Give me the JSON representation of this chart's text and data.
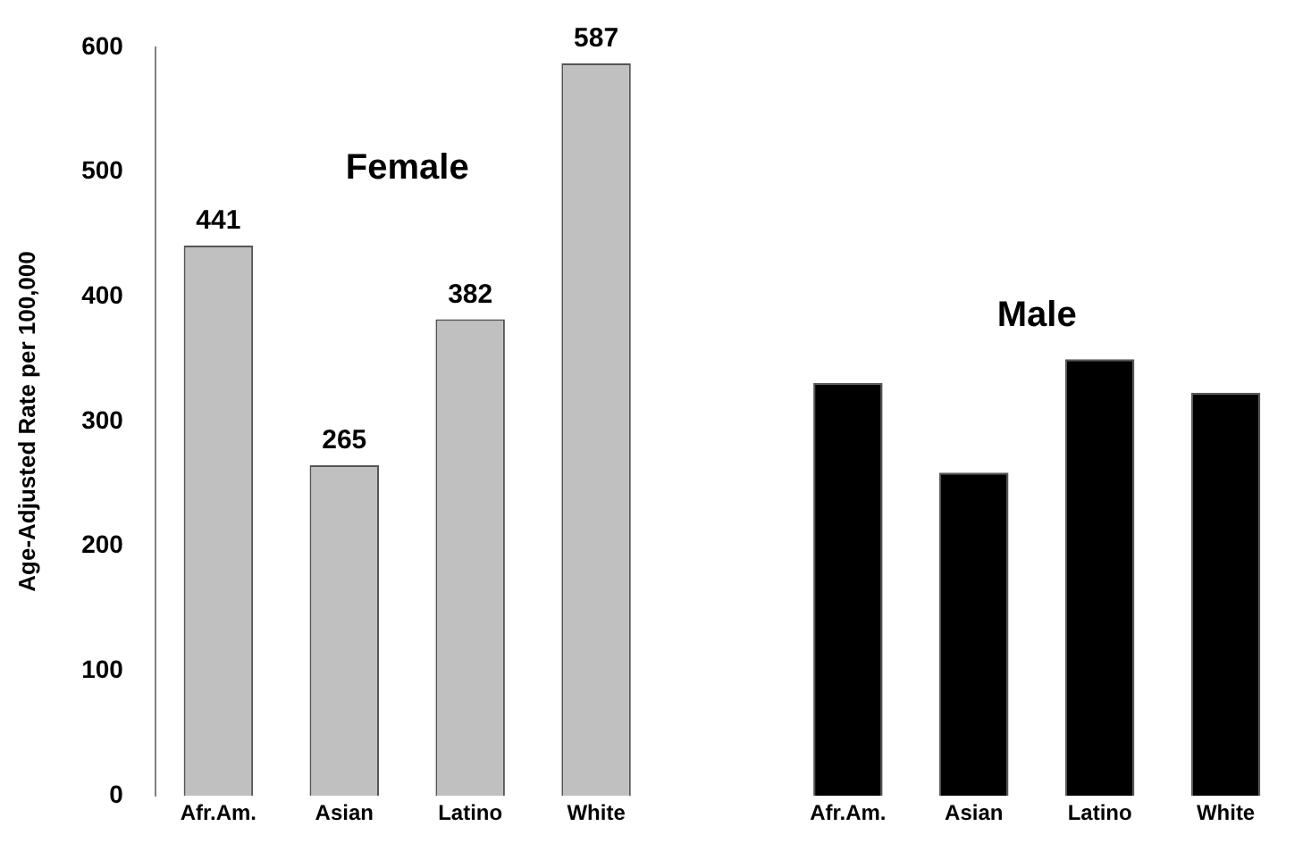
{
  "chart_data": {
    "type": "bar",
    "ylabel": "Age-Adjusted Rate per 100,000",
    "categories": [
      "Afr.Am.",
      "Asian",
      "Latino",
      "White",
      null,
      "Afr.Am.",
      "Asian",
      "Latino",
      "White"
    ],
    "series": [
      {
        "name": "Female",
        "color": "#c0c0c0",
        "values": [
          441,
          265,
          382,
          587,
          null,
          null,
          null,
          null,
          null
        ],
        "value_labels": [
          "441",
          "265",
          "382",
          "587",
          null,
          null,
          null,
          null,
          null
        ]
      },
      {
        "name": "Male",
        "color": "#000000",
        "values": [
          null,
          null,
          null,
          null,
          null,
          331,
          259,
          350,
          323
        ]
      }
    ],
    "ylim": [
      0,
      600
    ],
    "yticks": [
      0,
      100,
      200,
      300,
      400,
      500,
      600
    ],
    "grid": false,
    "legend": false
  }
}
